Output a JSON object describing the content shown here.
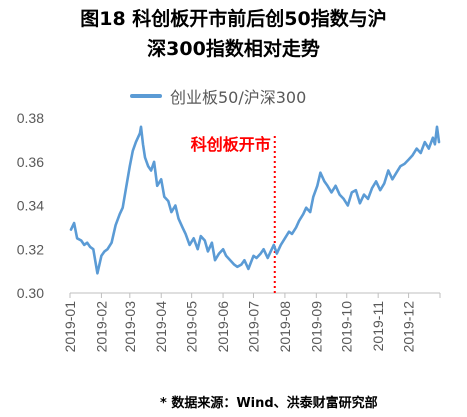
{
  "chart_data": {
    "type": "line",
    "title_line1": "图18  科创板开市前后创50指数与沪",
    "title_line2": "深300指数相对走势",
    "source": "* 数据来源：Wind、洪泰财富研究部",
    "legend_placement": "top",
    "grid": false,
    "ylim": [
      0.3,
      0.38
    ],
    "y_ticks": [
      "0.30",
      "0.32",
      "0.34",
      "0.36",
      "0.38"
    ],
    "x_ticks": [
      "2019-01",
      "2019-02",
      "2019-03",
      "2019-04",
      "2019-05",
      "2019-06",
      "2019-07",
      "2019-08",
      "2019-09",
      "2019-10",
      "2019-11",
      "2019-12"
    ],
    "annotation": {
      "text": "科创板开市",
      "x": "2019-07-22"
    },
    "colors": {
      "series": "#5b9bd5",
      "annotation": "#ff0000",
      "axis": "#bfbfbf"
    },
    "series": [
      {
        "name": "创业板50/沪深300",
        "x": [
          "2019-01-02",
          "2019-01-05",
          "2019-01-08",
          "2019-01-12",
          "2019-01-15",
          "2019-01-18",
          "2019-01-21",
          "2019-01-24",
          "2019-01-28",
          "2019-02-01",
          "2019-02-04",
          "2019-02-07",
          "2019-02-11",
          "2019-02-15",
          "2019-02-19",
          "2019-02-22",
          "2019-02-26",
          "2019-03-01",
          "2019-03-04",
          "2019-03-07",
          "2019-03-09",
          "2019-03-11",
          "2019-03-12",
          "2019-03-14",
          "2019-03-16",
          "2019-03-19",
          "2019-03-22",
          "2019-03-25",
          "2019-03-28",
          "2019-04-01",
          "2019-04-04",
          "2019-04-08",
          "2019-04-11",
          "2019-04-15",
          "2019-04-18",
          "2019-04-22",
          "2019-04-25",
          "2019-04-29",
          "2019-05-03",
          "2019-05-07",
          "2019-05-10",
          "2019-05-14",
          "2019-05-17",
          "2019-05-21",
          "2019-05-24",
          "2019-05-28",
          "2019-06-01",
          "2019-06-04",
          "2019-06-08",
          "2019-06-12",
          "2019-06-15",
          "2019-06-19",
          "2019-06-22",
          "2019-06-26",
          "2019-07-01",
          "2019-07-04",
          "2019-07-08",
          "2019-07-11",
          "2019-07-15",
          "2019-07-18",
          "2019-07-21",
          "2019-07-24",
          "2019-07-28",
          "2019-08-01",
          "2019-08-05",
          "2019-08-08",
          "2019-08-12",
          "2019-08-15",
          "2019-08-19",
          "2019-08-22",
          "2019-08-26",
          "2019-08-29",
          "2019-09-02",
          "2019-09-05",
          "2019-09-09",
          "2019-09-12",
          "2019-09-16",
          "2019-09-20",
          "2019-09-24",
          "2019-09-28",
          "2019-10-02",
          "2019-10-06",
          "2019-10-10",
          "2019-10-14",
          "2019-10-18",
          "2019-10-22",
          "2019-10-26",
          "2019-10-30",
          "2019-11-03",
          "2019-11-07",
          "2019-11-11",
          "2019-11-15",
          "2019-11-19",
          "2019-11-23",
          "2019-11-27",
          "2019-12-01",
          "2019-12-05",
          "2019-12-09",
          "2019-12-13",
          "2019-12-17",
          "2019-12-21",
          "2019-12-25",
          "2019-12-27",
          "2019-12-29",
          "2019-12-31"
        ],
        "values": [
          0.329,
          0.332,
          0.325,
          0.324,
          0.322,
          0.323,
          0.321,
          0.32,
          0.309,
          0.317,
          0.319,
          0.32,
          0.323,
          0.331,
          0.336,
          0.339,
          0.35,
          0.358,
          0.365,
          0.369,
          0.371,
          0.373,
          0.376,
          0.368,
          0.362,
          0.358,
          0.356,
          0.36,
          0.349,
          0.352,
          0.344,
          0.342,
          0.337,
          0.34,
          0.334,
          0.33,
          0.327,
          0.322,
          0.325,
          0.32,
          0.326,
          0.324,
          0.319,
          0.323,
          0.315,
          0.318,
          0.32,
          0.317,
          0.315,
          0.313,
          0.312,
          0.313,
          0.315,
          0.311,
          0.317,
          0.316,
          0.318,
          0.32,
          0.316,
          0.319,
          0.322,
          0.318,
          0.322,
          0.325,
          0.328,
          0.327,
          0.33,
          0.333,
          0.336,
          0.339,
          0.337,
          0.344,
          0.349,
          0.355,
          0.351,
          0.349,
          0.346,
          0.349,
          0.345,
          0.343,
          0.34,
          0.346,
          0.347,
          0.341,
          0.345,
          0.343,
          0.348,
          0.351,
          0.347,
          0.35,
          0.356,
          0.352,
          0.355,
          0.358,
          0.359,
          0.361,
          0.363,
          0.366,
          0.364,
          0.369,
          0.366,
          0.371,
          0.368,
          0.376,
          0.369
        ]
      }
    ]
  }
}
